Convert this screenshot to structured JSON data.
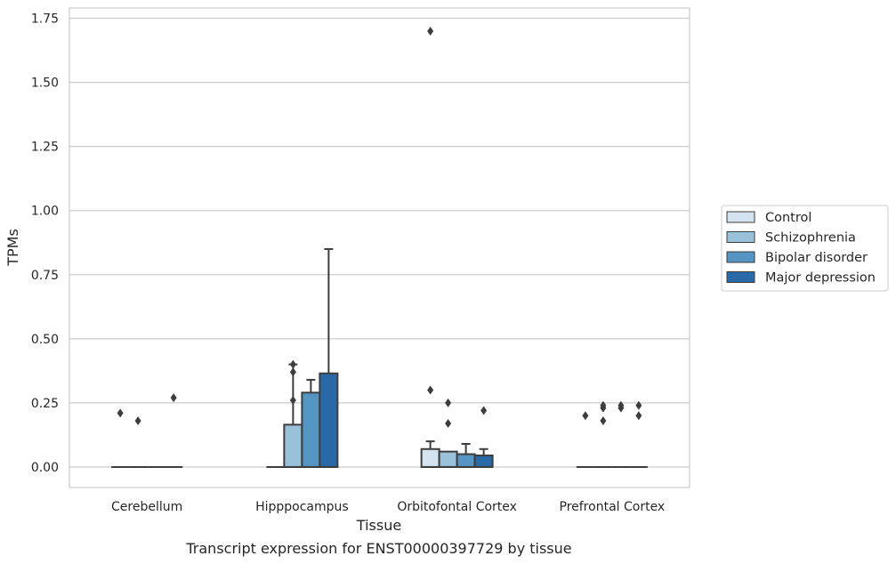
{
  "chart_data": {
    "type": "box",
    "title": "Transcript expression for ENST00000397729 by tissue",
    "xlabel": "Tissue",
    "ylabel": "TPMs",
    "ylim": [
      -0.08,
      1.79
    ],
    "yticks": [
      "0.00",
      "0.25",
      "0.50",
      "0.75",
      "1.00",
      "1.25",
      "1.50",
      "1.75"
    ],
    "ytick_values": [
      0,
      0.25,
      0.5,
      0.75,
      1.0,
      1.25,
      1.5,
      1.75
    ],
    "grid": "horizontal",
    "legend_position": "right",
    "categories": [
      "Cerebellum",
      "Hipppocampus",
      "Orbitofontal Cortex",
      "Prefrontal Cortex"
    ],
    "series": [
      {
        "name": "Control",
        "color": "#d4e3f0",
        "boxes": [
          {
            "q1": 0,
            "median": 0,
            "q3": 0,
            "whisker_low": 0,
            "whisker_high": 0,
            "outliers": [
              0.21
            ]
          },
          {
            "q1": 0,
            "median": 0,
            "q3": 0,
            "whisker_low": 0,
            "whisker_high": 0,
            "outliers": []
          },
          {
            "q1": 0,
            "median": 0,
            "q3": 0.07,
            "whisker_low": 0,
            "whisker_high": 0.1,
            "outliers": [
              0.3,
              1.7
            ]
          },
          {
            "q1": 0,
            "median": 0,
            "q3": 0,
            "whisker_low": 0,
            "whisker_high": 0,
            "outliers": [
              0.2
            ]
          }
        ]
      },
      {
        "name": "Schizophrenia",
        "color": "#9ac1da",
        "boxes": [
          {
            "q1": 0,
            "median": 0,
            "q3": 0,
            "whisker_low": 0,
            "whisker_high": 0,
            "outliers": [
              0.18
            ]
          },
          {
            "q1": 0,
            "median": 0,
            "q3": 0.165,
            "whisker_low": 0,
            "whisker_high": 0.4,
            "outliers": [
              0.26,
              0.37,
              0.4
            ]
          },
          {
            "q1": 0,
            "median": 0,
            "q3": 0.06,
            "whisker_low": 0,
            "whisker_high": 0.06,
            "outliers": [
              0.17,
              0.25
            ]
          },
          {
            "q1": 0,
            "median": 0,
            "q3": 0,
            "whisker_low": 0,
            "whisker_high": 0,
            "outliers": [
              0.18,
              0.23,
              0.24
            ]
          }
        ]
      },
      {
        "name": "Bipolar disorder",
        "color": "#5595c3",
        "boxes": [
          {
            "q1": 0,
            "median": 0,
            "q3": 0,
            "whisker_low": 0,
            "whisker_high": 0,
            "outliers": []
          },
          {
            "q1": 0,
            "median": 0,
            "q3": 0.29,
            "whisker_low": 0,
            "whisker_high": 0.34,
            "outliers": []
          },
          {
            "q1": 0,
            "median": 0,
            "q3": 0.05,
            "whisker_low": 0,
            "whisker_high": 0.09,
            "outliers": []
          },
          {
            "q1": 0,
            "median": 0,
            "q3": 0,
            "whisker_low": 0,
            "whisker_high": 0,
            "outliers": [
              0.23,
              0.24
            ]
          }
        ]
      },
      {
        "name": "Major depression",
        "color": "#2a69a8",
        "boxes": [
          {
            "q1": 0,
            "median": 0,
            "q3": 0,
            "whisker_low": 0,
            "whisker_high": 0,
            "outliers": [
              0.27
            ]
          },
          {
            "q1": 0,
            "median": 0,
            "q3": 0.365,
            "whisker_low": 0,
            "whisker_high": 0.85,
            "outliers": []
          },
          {
            "q1": 0,
            "median": 0,
            "q3": 0.045,
            "whisker_low": 0,
            "whisker_high": 0.07,
            "outliers": [
              0.22
            ]
          },
          {
            "q1": 0,
            "median": 0,
            "q3": 0,
            "whisker_low": 0,
            "whisker_high": 0,
            "outliers": [
              0.2,
              0.24
            ]
          }
        ]
      }
    ]
  }
}
